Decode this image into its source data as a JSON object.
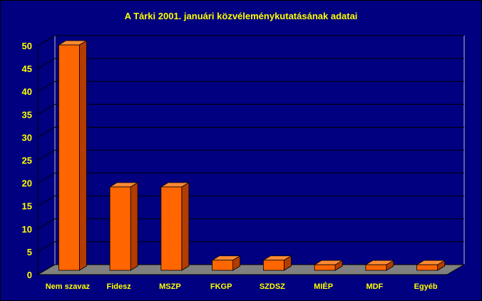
{
  "colors": {
    "background": "#000080",
    "text": "#ffff00",
    "grid": "#000000",
    "floor": "#808080",
    "bar_front": "#ff6600",
    "bar_top": "#ff8a33",
    "bar_side": "#b33c00"
  },
  "chart_data": {
    "type": "bar",
    "title": "A Tárki 2001. januári közvéleménykutatásának adatai",
    "xlabel": "",
    "ylabel": "",
    "ylim": [
      0,
      50
    ],
    "yticks": [
      0,
      5,
      10,
      15,
      20,
      25,
      30,
      35,
      40,
      45,
      50
    ],
    "categories": [
      "Nem szavaz",
      "Fidesz",
      "MSZP",
      "FKGP",
      "SZDSZ",
      "MIÉP",
      "MDF",
      "Egyéb"
    ],
    "values": [
      50,
      19,
      19,
      3,
      3,
      2,
      2,
      2
    ],
    "grid": true,
    "legend": "none"
  }
}
